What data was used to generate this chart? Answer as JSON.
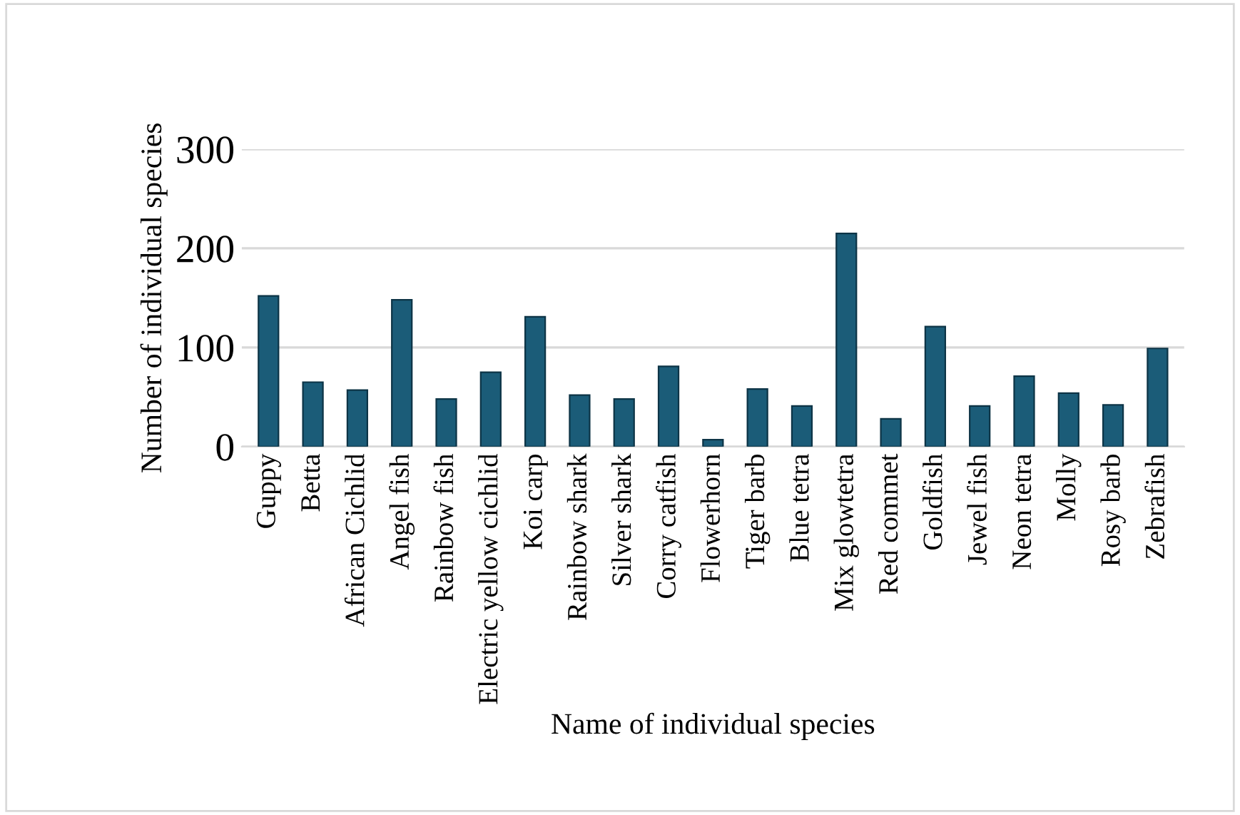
{
  "chart_data": {
    "type": "bar",
    "xlabel": "Name of individual species",
    "ylabel": "Number of individual species",
    "categories": [
      "Guppy",
      "Betta",
      "African Cichlid",
      "Angel fish",
      "Rainbow fish",
      "Electric yellow cichlid",
      "Koi carp",
      "Rainbow shark",
      "Silver shark",
      "Corry catfish",
      "Flowerhorn",
      "Tiger barb",
      "Blue tetra",
      "Mix glowtetra",
      "Red commet",
      "Goldfish",
      "Jewel fish",
      "Neon tetra",
      "Molly",
      "Rosy barb",
      "Zebrafish"
    ],
    "values": [
      152,
      65,
      57,
      148,
      48,
      75,
      131,
      52,
      48,
      81,
      7,
      58,
      41,
      215,
      28,
      121,
      41,
      71,
      54,
      42,
      99
    ],
    "color": "#1b5c78",
    "ylim": [
      0,
      300
    ],
    "yticks": [
      0,
      100,
      200,
      300
    ],
    "grid": "y"
  }
}
